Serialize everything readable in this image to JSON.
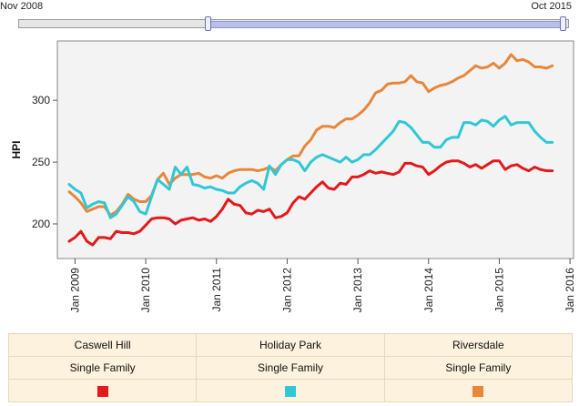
{
  "range": {
    "start_label": "Nov 2008",
    "end_label": "Oct 2015",
    "start": 2008.83,
    "end": 2015.75,
    "min": 2008.83,
    "max": 2015.75
  },
  "chart_data": {
    "type": "line",
    "title": "",
    "xlabel": "",
    "ylabel": "HPI",
    "xlim": [
      2008.75,
      2016.05
    ],
    "ylim": [
      172,
      348
    ],
    "yticks": [
      200,
      250,
      300
    ],
    "xticks": [
      {
        "value": 2009,
        "label": "Jan 2009"
      },
      {
        "value": 2010,
        "label": "Jan 2010"
      },
      {
        "value": 2011,
        "label": "Jan 2011"
      },
      {
        "value": 2012,
        "label": "Jan 2012"
      },
      {
        "value": 2013,
        "label": "Jan 2013"
      },
      {
        "value": 2014,
        "label": "Jan 2014"
      },
      {
        "value": 2015,
        "label": "Jan 2015"
      },
      {
        "value": 2016,
        "label": "Jan 2016"
      }
    ],
    "grid": false,
    "x": [
      2008.917,
      2009.0,
      2009.083,
      2009.167,
      2009.25,
      2009.333,
      2009.417,
      2009.5,
      2009.583,
      2009.667,
      2009.75,
      2009.833,
      2009.917,
      2010.0,
      2010.083,
      2010.167,
      2010.25,
      2010.333,
      2010.417,
      2010.5,
      2010.583,
      2010.667,
      2010.75,
      2010.833,
      2010.917,
      2011.0,
      2011.083,
      2011.167,
      2011.25,
      2011.333,
      2011.417,
      2011.5,
      2011.583,
      2011.667,
      2011.75,
      2011.833,
      2011.917,
      2012.0,
      2012.083,
      2012.167,
      2012.25,
      2012.333,
      2012.417,
      2012.5,
      2012.583,
      2012.667,
      2012.75,
      2012.833,
      2012.917,
      2013.0,
      2013.083,
      2013.167,
      2013.25,
      2013.333,
      2013.417,
      2013.5,
      2013.583,
      2013.667,
      2013.75,
      2013.833,
      2013.917,
      2014.0,
      2014.083,
      2014.167,
      2014.25,
      2014.333,
      2014.417,
      2014.5,
      2014.583,
      2014.667,
      2014.75,
      2014.833,
      2014.917,
      2015.0,
      2015.083,
      2015.167,
      2015.25,
      2015.333,
      2015.417,
      2015.5,
      2015.583,
      2015.667,
      2015.75
    ],
    "series": [
      {
        "name": "Caswell Hill",
        "subtitle": "Single Family",
        "color": "#e31a1c",
        "values": [
          186,
          189,
          194,
          186,
          183,
          189,
          189,
          188,
          194,
          193,
          193,
          192,
          194,
          199,
          204,
          205,
          205,
          204,
          200,
          203,
          204,
          205,
          203,
          204,
          202,
          206,
          212,
          220,
          216,
          215,
          209,
          208,
          211,
          210,
          212,
          205,
          206,
          209,
          217,
          222,
          220,
          225,
          230,
          234,
          229,
          228,
          233,
          232,
          238,
          238,
          240,
          243,
          241,
          242,
          241,
          240,
          242,
          249,
          249,
          247,
          246,
          240,
          243,
          247,
          250,
          251,
          251,
          249,
          246,
          248,
          245,
          248,
          251,
          251,
          244,
          247,
          248,
          245,
          243,
          246,
          244,
          243,
          243
        ]
      },
      {
        "name": "Holiday Park",
        "subtitle": "Single Family",
        "color": "#30c7d6",
        "values": [
          232,
          228,
          225,
          213,
          216,
          218,
          217,
          205,
          208,
          215,
          222,
          218,
          210,
          208,
          222,
          236,
          232,
          228,
          246,
          240,
          246,
          232,
          231,
          229,
          230,
          228,
          227,
          225,
          225,
          230,
          233,
          235,
          233,
          228,
          247,
          240,
          248,
          252,
          252,
          250,
          243,
          250,
          254,
          256,
          254,
          252,
          250,
          254,
          250,
          252,
          256,
          256,
          260,
          265,
          270,
          275,
          283,
          282,
          278,
          272,
          266,
          266,
          262,
          262,
          268,
          270,
          270,
          282,
          282,
          280,
          284,
          283,
          279,
          284,
          287,
          280,
          282,
          282,
          282,
          275,
          270,
          266,
          266
        ]
      },
      {
        "name": "Riversdale",
        "subtitle": "Single Family",
        "color": "#e8873a",
        "values": [
          226,
          222,
          217,
          210,
          212,
          214,
          214,
          207,
          210,
          216,
          224,
          220,
          218,
          218,
          223,
          236,
          241,
          232,
          237,
          240,
          240,
          240,
          241,
          238,
          237,
          239,
          237,
          241,
          243,
          244,
          244,
          244,
          243,
          244,
          246,
          243,
          248,
          252,
          255,
          255,
          263,
          268,
          276,
          279,
          279,
          278,
          282,
          285,
          285,
          288,
          292,
          298,
          306,
          308,
          313,
          314,
          314,
          315,
          320,
          315,
          314,
          307,
          310,
          312,
          313,
          315,
          318,
          320,
          324,
          328,
          326,
          327,
          330,
          326,
          330,
          337,
          332,
          333,
          331,
          327,
          327,
          326,
          328
        ]
      }
    ]
  }
}
